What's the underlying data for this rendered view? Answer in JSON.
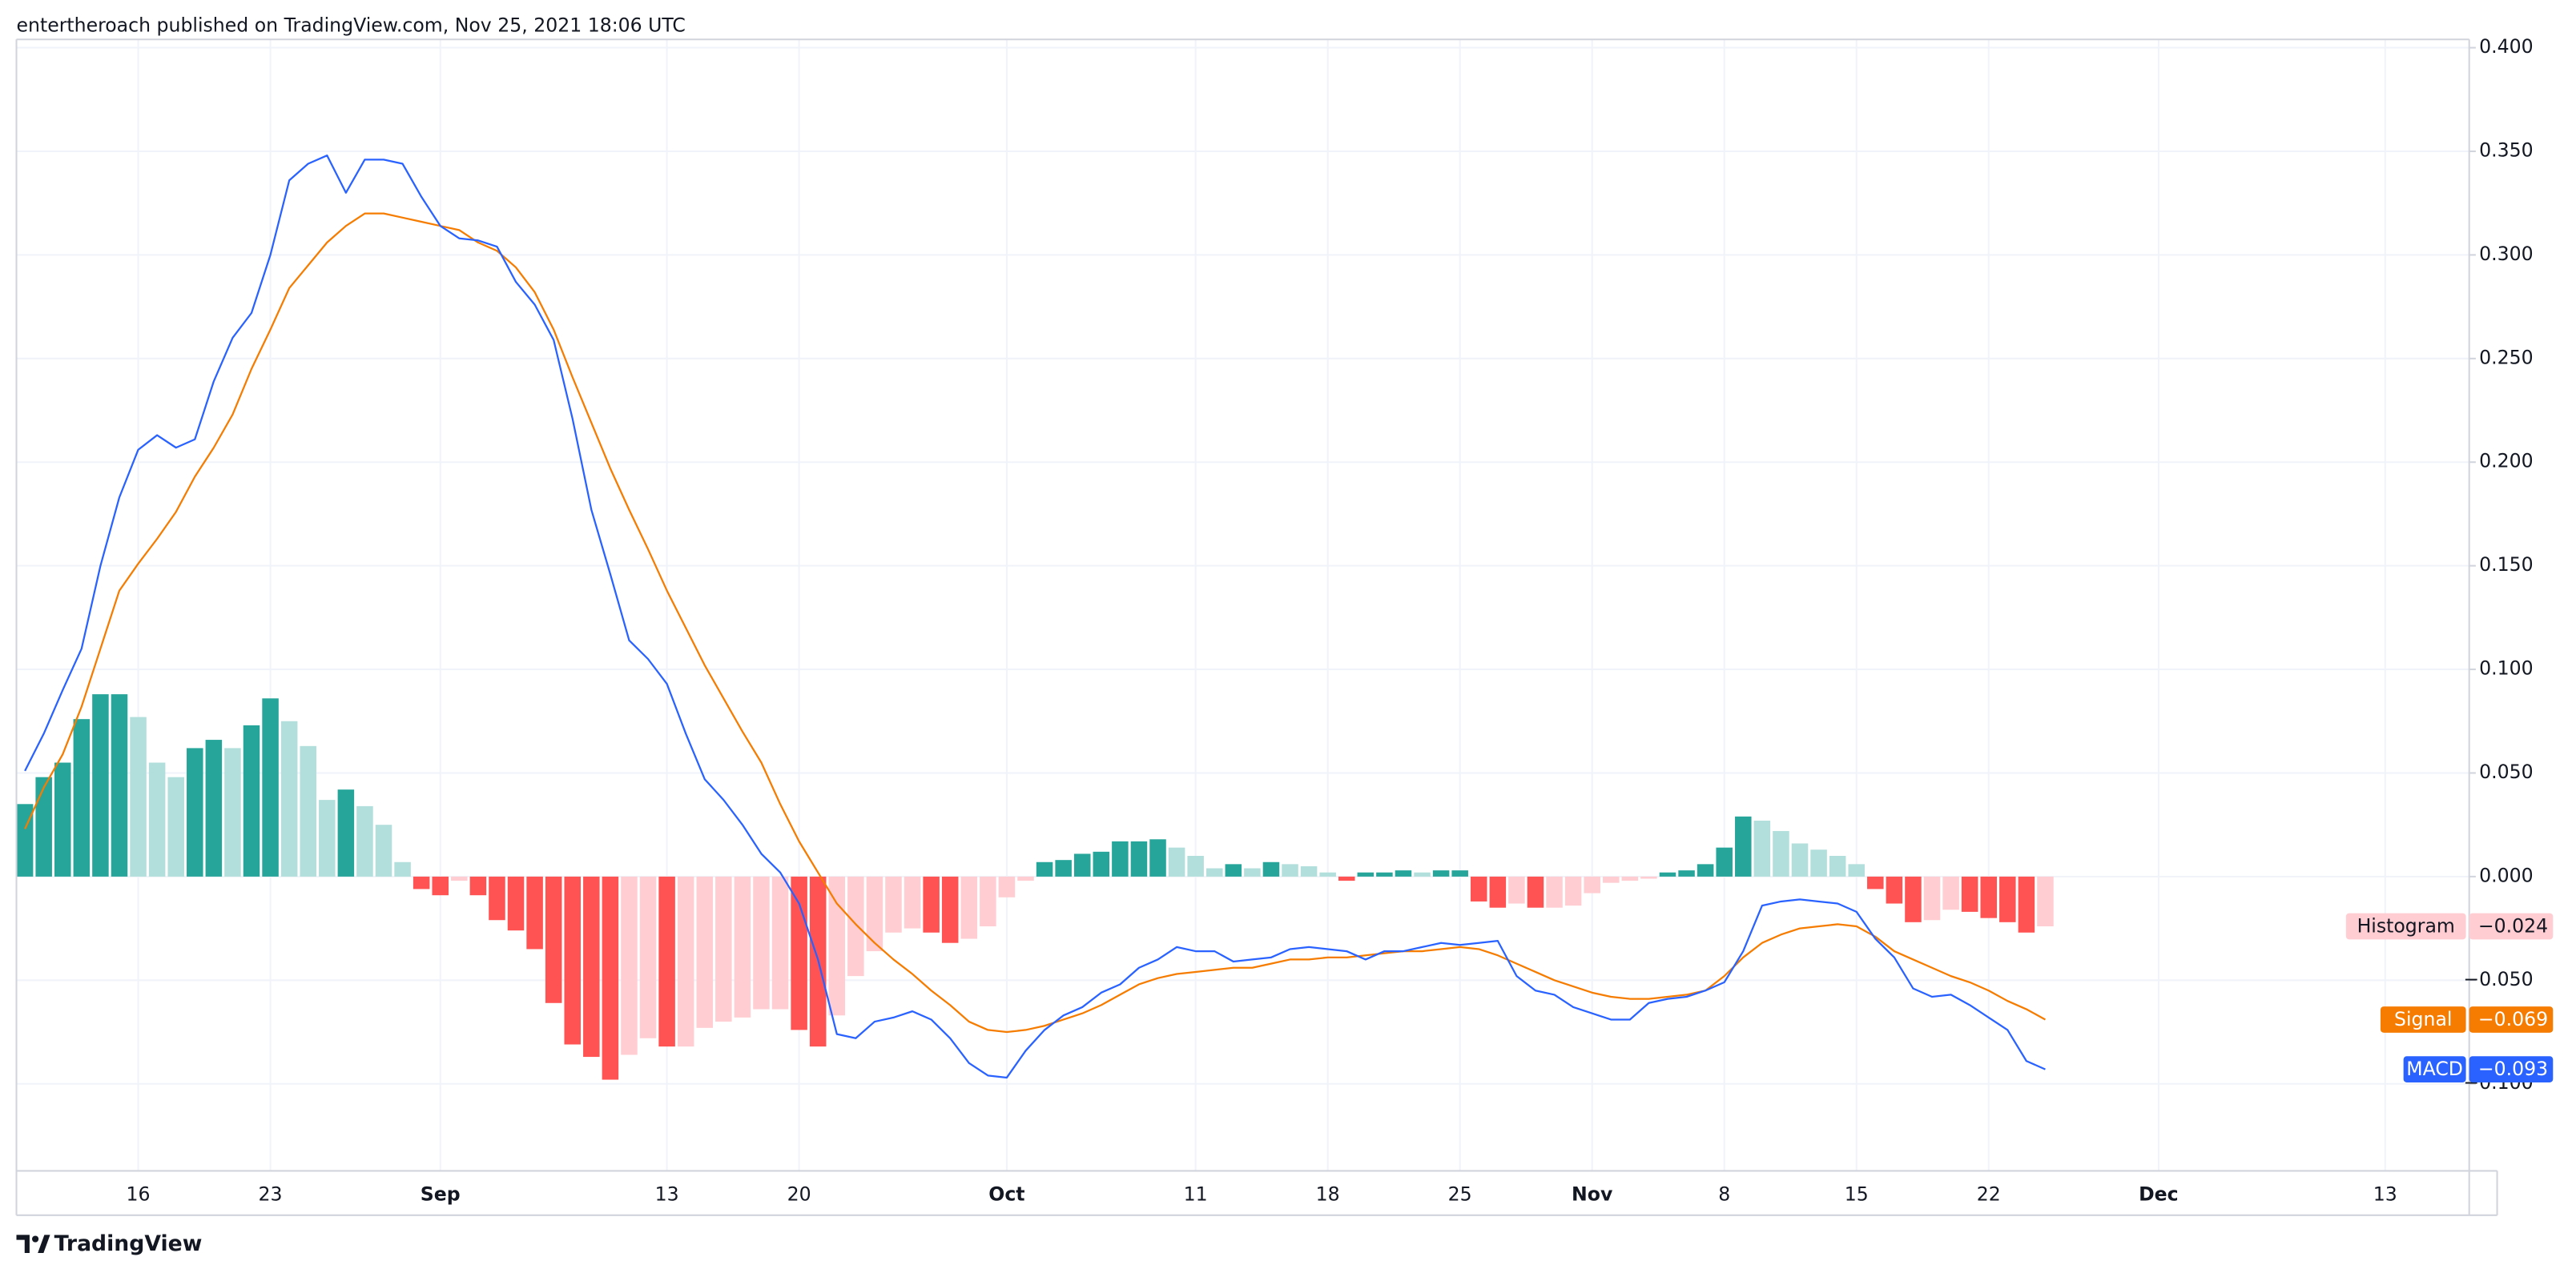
{
  "header": {
    "text": "entertheroach published on TradingView.com, Nov 25, 2021 18:06 UTC"
  },
  "footer": {
    "brand": "TradingView"
  },
  "chart_data": {
    "type": "macd",
    "categories": [
      null,
      null,
      null,
      null,
      null,
      null,
      "16",
      null,
      null,
      null,
      null,
      null,
      null,
      "23",
      null,
      null,
      null,
      null,
      null,
      null,
      null,
      null,
      "Sep",
      null,
      null,
      null,
      null,
      null,
      null,
      null,
      null,
      null,
      null,
      null,
      "13",
      null,
      null,
      null,
      null,
      null,
      null,
      "20",
      null,
      null,
      null,
      null,
      null,
      null,
      null,
      null,
      null,
      null,
      "Oct",
      null,
      null,
      null,
      null,
      null,
      null,
      null,
      null,
      null,
      "11",
      null,
      null,
      null,
      null,
      null,
      null,
      "18",
      null,
      null,
      null,
      null,
      null,
      null,
      "25",
      null,
      null,
      null,
      null,
      null,
      null,
      "Nov",
      null,
      null,
      null,
      null,
      null,
      null,
      "8",
      null,
      null,
      null,
      null,
      null,
      null,
      "15",
      null,
      null,
      null,
      null,
      null,
      null,
      "22",
      null,
      null,
      null,
      null,
      null,
      null,
      null,
      null,
      "Dec",
      null,
      null,
      null,
      null,
      null,
      null,
      null,
      null,
      null,
      null,
      null,
      "13",
      null,
      null,
      null,
      null
    ],
    "ylim": [
      -0.142,
      0.404
    ],
    "yticks": [
      {
        "value": 0.4,
        "label": "0.400"
      },
      {
        "value": 0.35,
        "label": "0.350"
      },
      {
        "value": 0.3,
        "label": "0.300"
      },
      {
        "value": 0.25,
        "label": "0.250"
      },
      {
        "value": 0.2,
        "label": "0.200"
      },
      {
        "value": 0.15,
        "label": "0.150"
      },
      {
        "value": 0.1,
        "label": "0.100"
      },
      {
        "value": 0.05,
        "label": "0.050"
      },
      {
        "value": 0,
        "label": "0.000"
      },
      {
        "value": -0.05,
        "label": "−0.050"
      },
      {
        "value": -0.1,
        "label": "−0.100"
      }
    ],
    "grid": true,
    "series": [
      {
        "name": "Histogram",
        "style": "columns",
        "value_label": "−0.024",
        "color": "#ffcdd2",
        "colors": {
          "above_growing": "#26a69a",
          "above_falling": "#b2dfdb",
          "below_rising": "#ffcdd2",
          "below_falling": "#ff5252"
        },
        "values": [
          0.035,
          0.048,
          0.055,
          0.076,
          0.088,
          0.088,
          0.077,
          0.055,
          0.048,
          0.062,
          0.066,
          0.062,
          0.073,
          0.086,
          0.075,
          0.063,
          0.037,
          0.042,
          0.034,
          0.025,
          0.007,
          -0.006,
          -0.009,
          -0.002,
          -0.009,
          -0.021,
          -0.026,
          -0.035,
          -0.061,
          -0.081,
          -0.087,
          -0.098,
          -0.086,
          -0.078,
          -0.082,
          -0.082,
          -0.073,
          -0.07,
          -0.068,
          -0.064,
          -0.064,
          -0.074,
          -0.082,
          -0.067,
          -0.048,
          -0.036,
          -0.027,
          -0.025,
          -0.027,
          -0.032,
          -0.03,
          -0.024,
          -0.01,
          -0.002,
          0.007,
          0.008,
          0.011,
          0.012,
          0.017,
          0.017,
          0.018,
          0.014,
          0.01,
          0.004,
          0.006,
          0.004,
          0.007,
          0.006,
          0.005,
          0.002,
          -0.002,
          0.002,
          0.002,
          0.003,
          0.002,
          0.003,
          0.003,
          -0.012,
          -0.015,
          -0.013,
          -0.015,
          -0.015,
          -0.014,
          -0.008,
          -0.003,
          -0.002,
          -0.001,
          0.002,
          0.003,
          0.006,
          0.014,
          0.029,
          0.027,
          0.022,
          0.016,
          0.013,
          0.01,
          0.006,
          -0.006,
          -0.013,
          -0.022,
          -0.021,
          -0.016,
          -0.017,
          -0.02,
          -0.022,
          -0.027,
          -0.024,
          null,
          null,
          null,
          null,
          null,
          null,
          null,
          null,
          null,
          null,
          null,
          null,
          null,
          null,
          null,
          null,
          null,
          null,
          null,
          null,
          null,
          null
        ]
      },
      {
        "name": "Signal",
        "style": "line",
        "value_label": "−0.069",
        "color": "#f57c00",
        "values": [
          0.023,
          0.043,
          0.059,
          0.082,
          0.11,
          0.138,
          0.151,
          0.163,
          0.176,
          0.193,
          0.207,
          0.223,
          0.245,
          0.264,
          0.284,
          0.295,
          0.306,
          0.314,
          0.32,
          0.32,
          0.318,
          0.316,
          0.314,
          0.312,
          0.306,
          0.302,
          0.294,
          0.282,
          0.264,
          0.241,
          0.219,
          0.197,
          0.177,
          0.158,
          0.138,
          0.12,
          0.102,
          0.086,
          0.07,
          0.055,
          0.035,
          0.017,
          0.002,
          -0.013,
          -0.023,
          -0.032,
          -0.04,
          -0.047,
          -0.055,
          -0.062,
          -0.07,
          -0.074,
          -0.075,
          -0.074,
          -0.072,
          -0.069,
          -0.066,
          -0.062,
          -0.057,
          -0.052,
          -0.049,
          -0.047,
          -0.046,
          -0.045,
          -0.044,
          -0.044,
          -0.042,
          -0.04,
          -0.04,
          -0.039,
          -0.039,
          -0.038,
          -0.037,
          -0.036,
          -0.036,
          -0.035,
          -0.034,
          -0.035,
          -0.038,
          -0.042,
          -0.046,
          -0.05,
          -0.053,
          -0.056,
          -0.058,
          -0.059,
          -0.059,
          -0.058,
          -0.057,
          -0.055,
          -0.048,
          -0.039,
          -0.032,
          -0.028,
          -0.025,
          -0.024,
          -0.023,
          -0.024,
          -0.029,
          -0.036,
          -0.04,
          -0.044,
          -0.048,
          -0.051,
          -0.055,
          -0.06,
          -0.064,
          -0.069,
          null,
          null,
          null,
          null,
          null,
          null,
          null,
          null,
          null,
          null,
          null,
          null,
          null,
          null,
          null,
          null,
          null,
          null,
          null,
          null,
          null,
          null
        ]
      },
      {
        "name": "MACD",
        "style": "line",
        "value_label": "−0.093",
        "color": "#2962ff",
        "values": [
          0.051,
          0.069,
          0.09,
          0.11,
          0.15,
          0.183,
          0.206,
          0.213,
          0.207,
          0.211,
          0.239,
          0.26,
          0.272,
          0.3,
          0.336,
          0.344,
          0.348,
          0.33,
          0.346,
          0.346,
          0.344,
          0.328,
          0.314,
          0.308,
          0.307,
          0.304,
          0.287,
          0.276,
          0.259,
          0.221,
          0.177,
          0.146,
          0.114,
          0.105,
          0.093,
          0.069,
          0.047,
          0.037,
          0.025,
          0.011,
          0.002,
          -0.013,
          -0.04,
          -0.076,
          -0.078,
          -0.07,
          -0.068,
          -0.065,
          -0.069,
          -0.078,
          -0.09,
          -0.096,
          -0.097,
          -0.084,
          -0.074,
          -0.067,
          -0.063,
          -0.056,
          -0.052,
          -0.044,
          -0.04,
          -0.034,
          -0.036,
          -0.036,
          -0.041,
          -0.04,
          -0.039,
          -0.035,
          -0.034,
          -0.035,
          -0.036,
          -0.04,
          -0.036,
          -0.036,
          -0.034,
          -0.032,
          -0.033,
          -0.032,
          -0.031,
          -0.048,
          -0.055,
          -0.057,
          -0.063,
          -0.066,
          -0.069,
          -0.069,
          -0.061,
          -0.059,
          -0.058,
          -0.055,
          -0.051,
          -0.036,
          -0.014,
          -0.012,
          -0.011,
          -0.012,
          -0.013,
          -0.017,
          -0.03,
          -0.039,
          -0.054,
          -0.058,
          -0.057,
          -0.062,
          -0.068,
          -0.074,
          -0.089,
          -0.093,
          null,
          null,
          null,
          null,
          null,
          null,
          null,
          null,
          null,
          null,
          null,
          null,
          null,
          null,
          null,
          null,
          null,
          null,
          null,
          null,
          null,
          null
        ]
      }
    ]
  }
}
